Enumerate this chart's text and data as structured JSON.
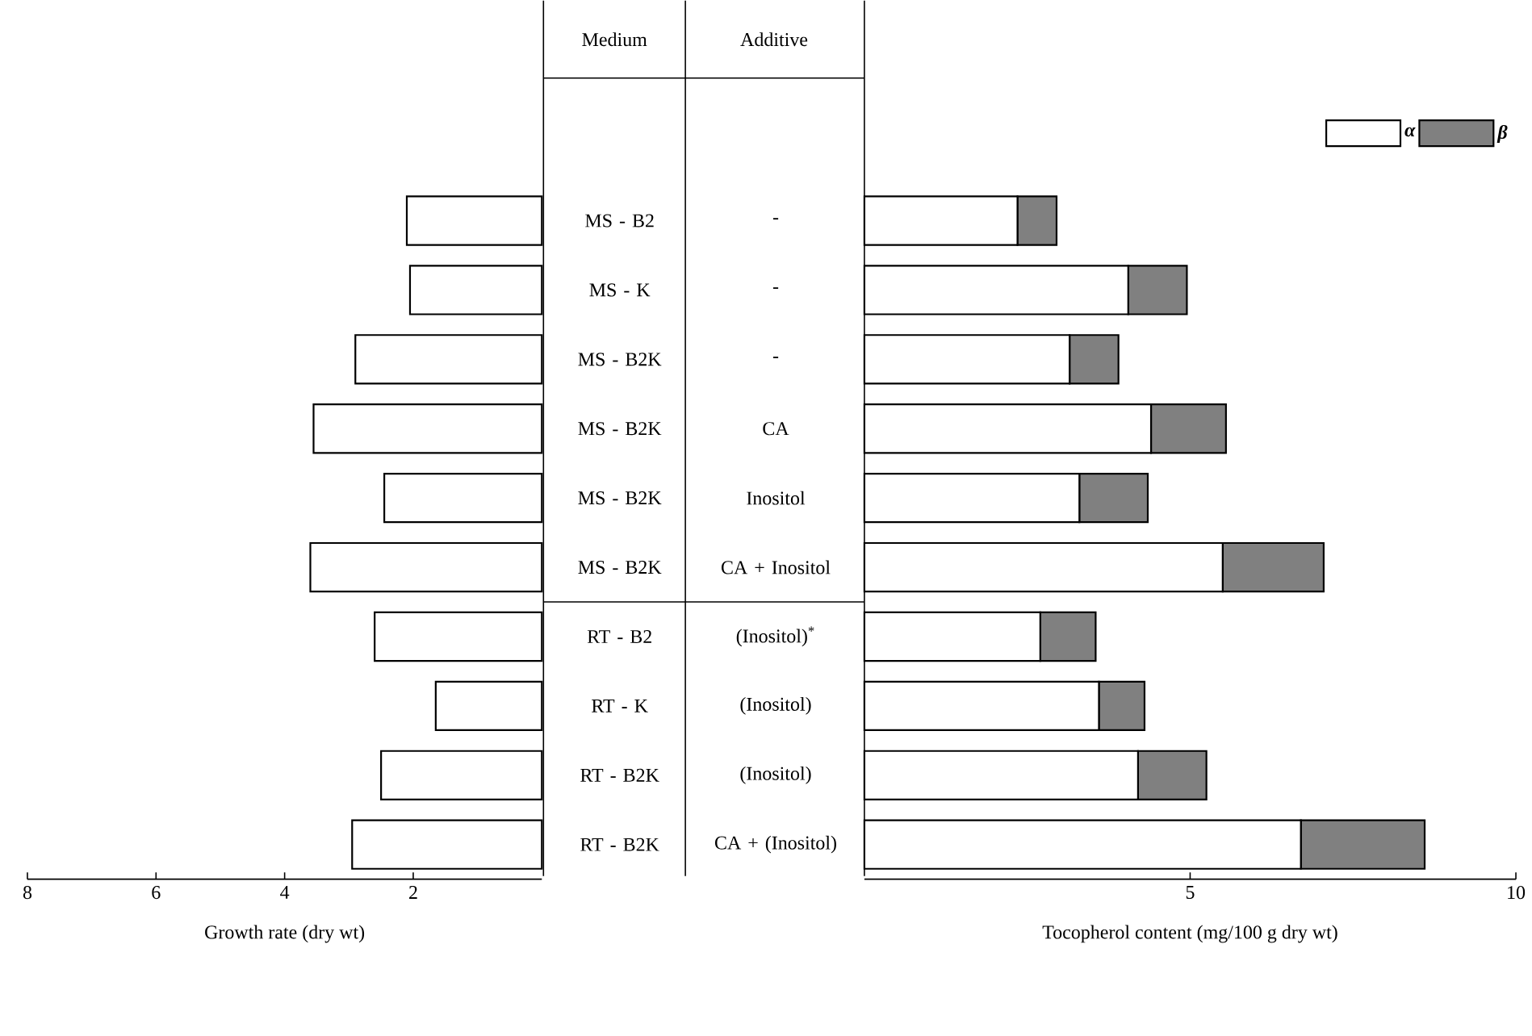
{
  "chart_data": [
    {
      "type": "bar",
      "orientation": "horizontal",
      "xlabel": "Growth rate (dry wt)",
      "ylabel": "Medium",
      "categories": [
        "MS - B2",
        "MS - K",
        "MS - B2K",
        "MS - B2K",
        "MS - B2K",
        "MS - B2K",
        "RT - B2",
        "RT - K",
        "RT - B2K",
        "RT - B2K"
      ],
      "values": [
        2.1,
        2.05,
        2.9,
        3.55,
        2.45,
        3.6,
        2.6,
        1.65,
        2.5,
        2.95
      ],
      "color": "#ffffff",
      "xlim": [
        8,
        0
      ],
      "xticks": [
        8,
        6,
        4,
        2
      ]
    },
    {
      "type": "bar",
      "orientation": "horizontal",
      "stacked": true,
      "xlabel": "Tocopherol content (mg/100 g dry wt)",
      "ylabel": "Additive",
      "categories": [
        "-",
        "-",
        "-",
        "CA",
        "Inositol",
        "CA + Inositol",
        "(Inositol)$^{*}$",
        "(Inositol)",
        "(Inositol)",
        "CA + (Inositol)"
      ],
      "series": [
        {
          "name": "α",
          "color": "#ffffff",
          "values": [
            2.35,
            4.05,
            3.15,
            4.4,
            3.3,
            5.5,
            2.7,
            3.6,
            4.2,
            6.7
          ]
        },
        {
          "name": "β",
          "color": "#808080",
          "values": [
            0.6,
            0.9,
            0.75,
            1.15,
            1.05,
            1.55,
            0.85,
            0.7,
            1.05,
            1.9
          ]
        }
      ],
      "xlim": [
        0,
        10
      ],
      "xticks": [
        5,
        10
      ],
      "legend": "top right"
    }
  ]
}
